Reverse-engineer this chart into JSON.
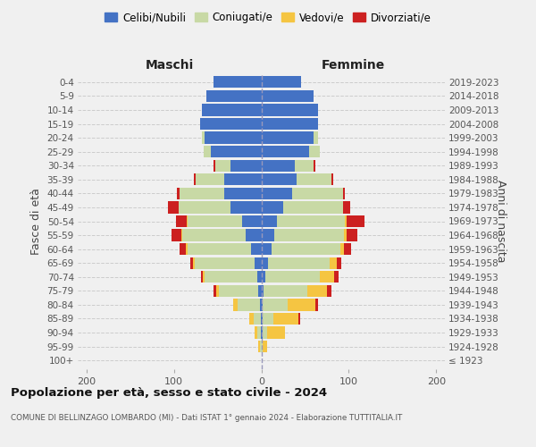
{
  "age_groups": [
    "100+",
    "95-99",
    "90-94",
    "85-89",
    "80-84",
    "75-79",
    "70-74",
    "65-69",
    "60-64",
    "55-59",
    "50-54",
    "45-49",
    "40-44",
    "35-39",
    "30-34",
    "25-29",
    "20-24",
    "15-19",
    "10-14",
    "5-9",
    "0-4"
  ],
  "birth_years": [
    "≤ 1923",
    "1924-1928",
    "1929-1933",
    "1934-1938",
    "1939-1943",
    "1944-1948",
    "1949-1953",
    "1954-1958",
    "1959-1963",
    "1964-1968",
    "1969-1973",
    "1974-1978",
    "1979-1983",
    "1984-1988",
    "1989-1993",
    "1994-1998",
    "1999-2003",
    "2004-2008",
    "2009-2013",
    "2014-2018",
    "2019-2023"
  ],
  "maschi": {
    "celibi": [
      0,
      0,
      1,
      1,
      2,
      4,
      5,
      8,
      12,
      18,
      22,
      35,
      42,
      42,
      35,
      58,
      65,
      70,
      68,
      63,
      55
    ],
    "coniugati": [
      0,
      2,
      4,
      8,
      25,
      45,
      60,
      68,
      72,
      72,
      62,
      60,
      52,
      33,
      18,
      8,
      3,
      0,
      0,
      0,
      0
    ],
    "vedovi": [
      0,
      2,
      3,
      5,
      5,
      3,
      2,
      2,
      2,
      1,
      1,
      0,
      0,
      0,
      0,
      0,
      0,
      0,
      0,
      0,
      0
    ],
    "divorziati": [
      0,
      0,
      0,
      0,
      0,
      3,
      2,
      3,
      8,
      12,
      13,
      12,
      3,
      2,
      2,
      0,
      0,
      0,
      0,
      0,
      0
    ]
  },
  "femmine": {
    "nubili": [
      0,
      0,
      2,
      2,
      2,
      3,
      5,
      8,
      12,
      15,
      18,
      25,
      35,
      40,
      38,
      55,
      60,
      65,
      65,
      60,
      45
    ],
    "coniugate": [
      0,
      2,
      5,
      12,
      28,
      50,
      62,
      70,
      78,
      80,
      78,
      68,
      58,
      40,
      22,
      12,
      5,
      0,
      0,
      0,
      0
    ],
    "vedove": [
      0,
      5,
      20,
      28,
      32,
      22,
      16,
      8,
      5,
      3,
      2,
      1,
      0,
      0,
      0,
      0,
      0,
      0,
      0,
      0,
      0
    ],
    "divorziate": [
      0,
      0,
      0,
      2,
      3,
      5,
      5,
      5,
      8,
      12,
      20,
      8,
      3,
      2,
      2,
      0,
      0,
      0,
      0,
      0,
      0
    ]
  },
  "colors": {
    "celibi": "#4472c4",
    "coniugati": "#c8d9a5",
    "vedovi": "#f5c542",
    "divorziati": "#cc2020"
  },
  "xlim": 210,
  "title": "Popolazione per età, sesso e stato civile - 2024",
  "subtitle": "COMUNE DI BELLINZAGO LOMBARDO (MI) - Dati ISTAT 1° gennaio 2024 - Elaborazione TUTTITALIA.IT",
  "ylabel_left": "Fasce di età",
  "ylabel_right": "Anni di nascita",
  "label_maschi": "Maschi",
  "label_femmine": "Femmine",
  "bg_color": "#f0f0f0",
  "legend_labels": [
    "Celibi/Nubili",
    "Coniugati/e",
    "Vedovi/e",
    "Divorziati/e"
  ]
}
